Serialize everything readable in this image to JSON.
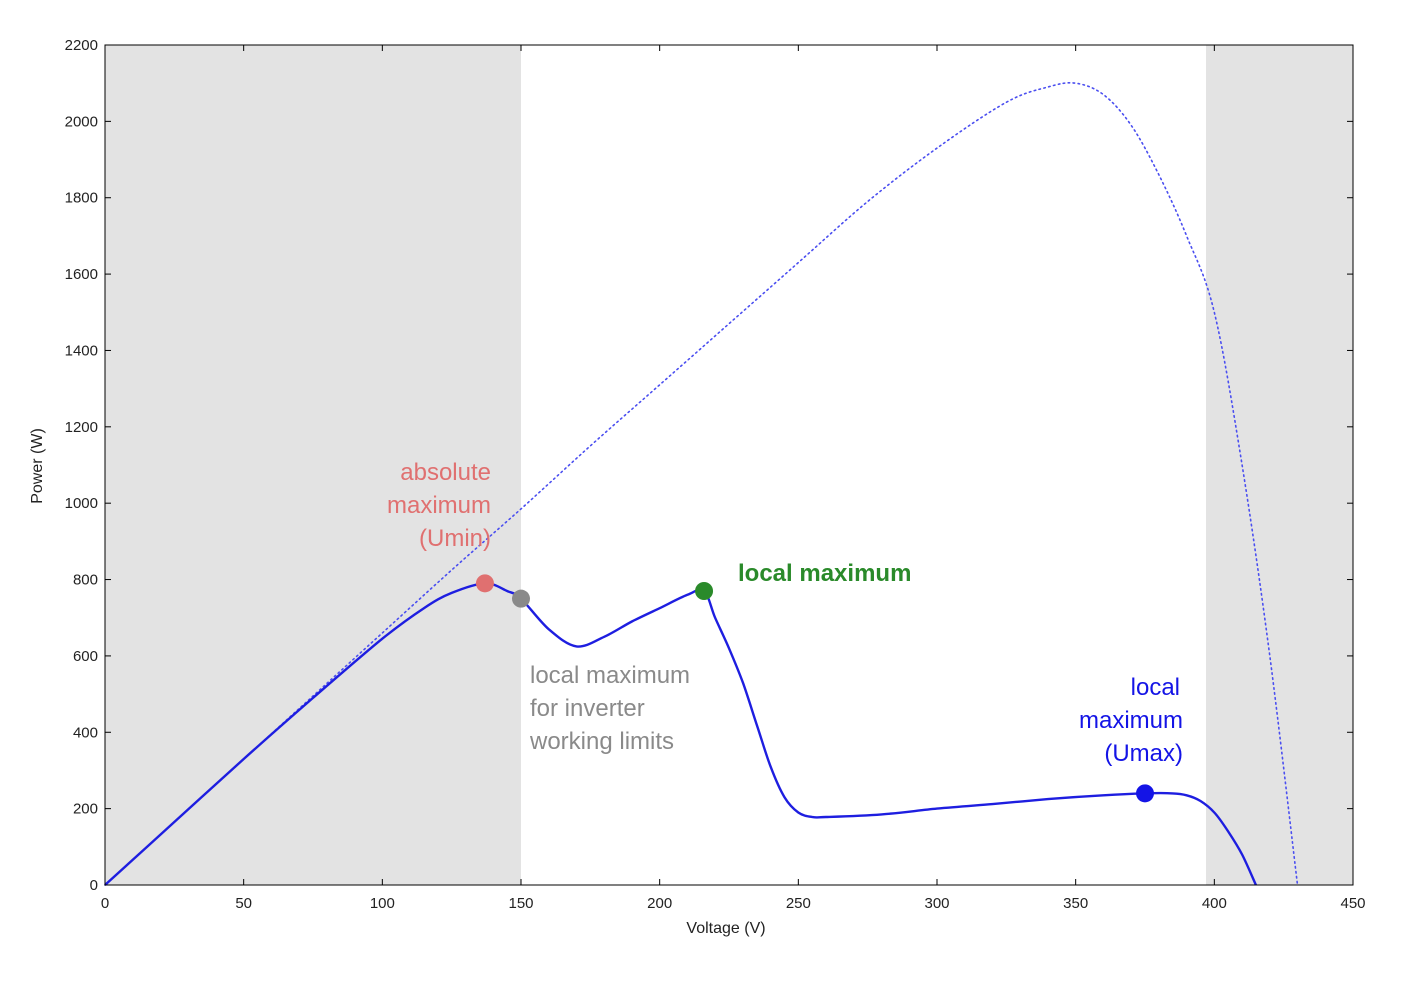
{
  "chart_data": {
    "type": "line",
    "title": "",
    "xlabel": "Voltage (V)",
    "ylabel": "Power (W)",
    "xlim": [
      0,
      450
    ],
    "ylim": [
      0,
      2200
    ],
    "xticks": [
      0,
      50,
      100,
      150,
      200,
      250,
      300,
      350,
      400,
      450
    ],
    "yticks": [
      0,
      200,
      400,
      600,
      800,
      1000,
      1200,
      1400,
      1600,
      1800,
      2000,
      2200
    ],
    "grid": false,
    "shaded_regions": [
      {
        "x_from": 0,
        "x_to": 150,
        "color": "#e3e3e3"
      },
      {
        "x_from": 397,
        "x_to": 450,
        "color": "#e3e3e3"
      }
    ],
    "series": [
      {
        "style": "dotted",
        "color": "#4a4ef0",
        "x": [
          0,
          25,
          50,
          75,
          100,
          125,
          150,
          175,
          200,
          225,
          250,
          275,
          300,
          325,
          340,
          350,
          360,
          370,
          380,
          390,
          400,
          410,
          420,
          430
        ],
        "y": [
          0,
          165,
          330,
          495,
          660,
          825,
          985,
          1150,
          1310,
          1470,
          1630,
          1790,
          1930,
          2050,
          2090,
          2100,
          2070,
          1990,
          1860,
          1700,
          1500,
          1100,
          600,
          0
        ]
      },
      {
        "style": "solid",
        "color": "#1e1ee0",
        "x": [
          0,
          25,
          50,
          75,
          100,
          115,
          125,
          137,
          145,
          150,
          160,
          170,
          180,
          190,
          200,
          210,
          216,
          220,
          225,
          230,
          235,
          240,
          245,
          250,
          255,
          260,
          280,
          300,
          320,
          340,
          360,
          375,
          385,
          390,
          395,
          400,
          405,
          410,
          415
        ],
        "y": [
          0,
          165,
          330,
          490,
          645,
          725,
          765,
          790,
          770,
          750,
          670,
          625,
          650,
          690,
          725,
          760,
          770,
          700,
          620,
          530,
          420,
          310,
          230,
          190,
          178,
          178,
          185,
          200,
          212,
          225,
          235,
          240,
          240,
          235,
          220,
          190,
          140,
          80,
          0
        ]
      }
    ],
    "markers": [
      {
        "x": 137,
        "y": 790,
        "color": "#e07070"
      },
      {
        "x": 150,
        "y": 750,
        "color": "#8a8a8a"
      },
      {
        "x": 216,
        "y": 770,
        "color": "#2a8a2a"
      },
      {
        "x": 375,
        "y": 240,
        "color": "#1414e6"
      }
    ],
    "annotations": [
      {
        "lines": [
          "absolute",
          "maximum",
          "(Umin)"
        ],
        "color": "#e07070"
      },
      {
        "lines": [
          "local maximum",
          "for inverter",
          "working limits"
        ],
        "color": "#8a8a8a"
      },
      {
        "lines": [
          "local maximum"
        ],
        "color": "#2a8a2a"
      },
      {
        "lines": [
          "local",
          "maximum",
          "(Umax)"
        ],
        "color": "#1414e6"
      }
    ]
  }
}
